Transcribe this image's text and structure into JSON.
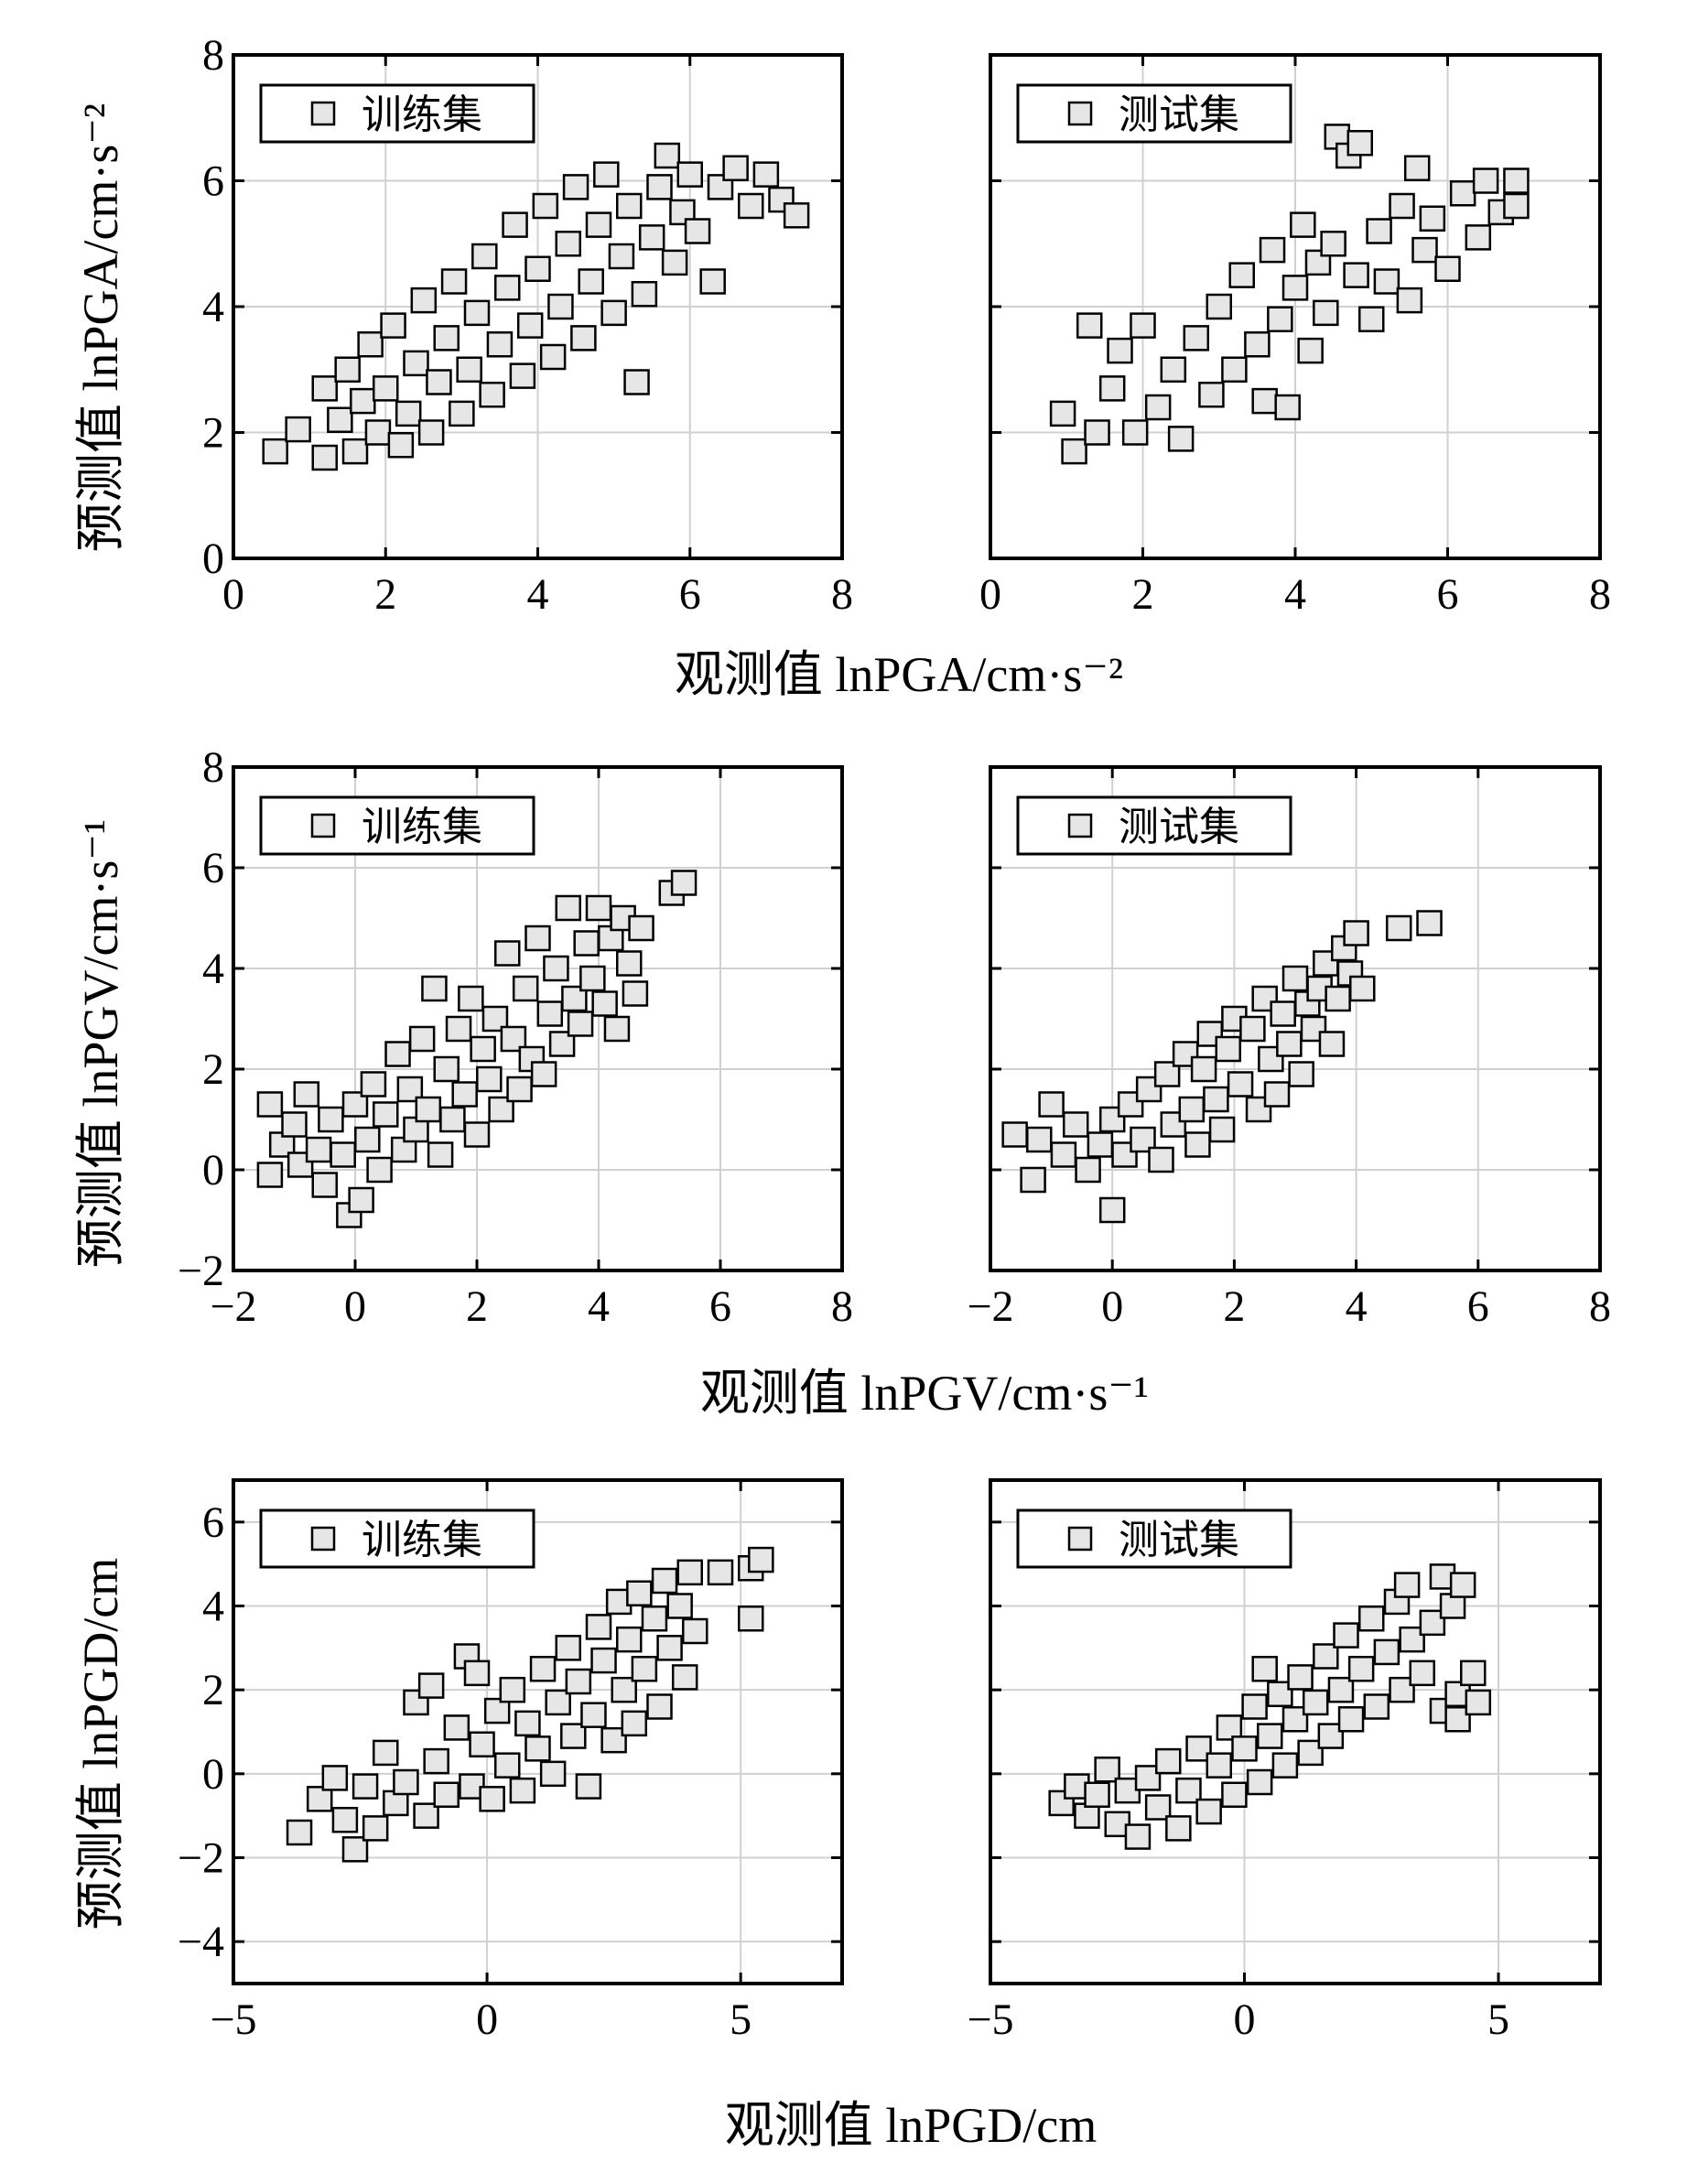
{
  "chart_data": [
    {
      "type": "scatter",
      "row": 0,
      "col": 0,
      "legend": "训练集",
      "xlabel": "观测值 lnPGA/cm·s⁻²",
      "ylabel": "预测值 lnPGA/cm·s⁻²",
      "xlim": [
        0,
        8
      ],
      "ylim": [
        0,
        8
      ],
      "xticks": [
        "0",
        "2",
        "4",
        "6",
        "8"
      ],
      "yticks": [
        "0",
        "2",
        "4",
        "6",
        "8"
      ],
      "points": [
        [
          0.55,
          1.7
        ],
        [
          0.85,
          2.05
        ],
        [
          1.2,
          1.6
        ],
        [
          1.2,
          2.7
        ],
        [
          1.4,
          2.2
        ],
        [
          1.5,
          3.0
        ],
        [
          1.6,
          1.7
        ],
        [
          1.7,
          2.5
        ],
        [
          1.8,
          3.4
        ],
        [
          1.9,
          2.0
        ],
        [
          2.0,
          2.7
        ],
        [
          2.1,
          3.7
        ],
        [
          2.2,
          1.8
        ],
        [
          2.3,
          2.3
        ],
        [
          2.4,
          3.1
        ],
        [
          2.5,
          4.1
        ],
        [
          2.6,
          2.0
        ],
        [
          2.7,
          2.8
        ],
        [
          2.8,
          3.5
        ],
        [
          2.9,
          4.4
        ],
        [
          3.0,
          2.3
        ],
        [
          3.1,
          3.0
        ],
        [
          3.2,
          3.9
        ],
        [
          3.3,
          4.8
        ],
        [
          3.4,
          2.6
        ],
        [
          3.5,
          3.4
        ],
        [
          3.6,
          4.3
        ],
        [
          3.7,
          5.3
        ],
        [
          3.8,
          2.9
        ],
        [
          3.9,
          3.7
        ],
        [
          4.0,
          4.6
        ],
        [
          4.1,
          5.6
        ],
        [
          4.2,
          3.2
        ],
        [
          4.3,
          4.0
        ],
        [
          4.4,
          5.0
        ],
        [
          4.5,
          5.9
        ],
        [
          4.6,
          3.5
        ],
        [
          4.7,
          4.4
        ],
        [
          4.8,
          5.3
        ],
        [
          4.9,
          6.1
        ],
        [
          5.0,
          3.9
        ],
        [
          5.1,
          4.8
        ],
        [
          5.2,
          5.6
        ],
        [
          5.3,
          2.8
        ],
        [
          5.4,
          4.2
        ],
        [
          5.5,
          5.1
        ],
        [
          5.6,
          5.9
        ],
        [
          5.7,
          6.4
        ],
        [
          5.8,
          4.7
        ],
        [
          5.9,
          5.5
        ],
        [
          6.0,
          6.1
        ],
        [
          6.1,
          5.2
        ],
        [
          6.3,
          4.4
        ],
        [
          6.4,
          5.9
        ],
        [
          6.6,
          6.2
        ],
        [
          6.8,
          5.6
        ],
        [
          7.0,
          6.1
        ],
        [
          7.2,
          5.7
        ],
        [
          7.4,
          5.45
        ]
      ],
      "marker_colour": "#e6e6e6",
      "edge_colour": "#000000"
    },
    {
      "type": "scatter",
      "row": 0,
      "col": 1,
      "legend": "测试集",
      "xlim": [
        0,
        8
      ],
      "ylim": [
        0,
        8
      ],
      "xticks": [
        "0",
        "2",
        "4",
        "6",
        "8"
      ],
      "yticks": [],
      "points": [
        [
          0.95,
          2.3
        ],
        [
          1.1,
          1.7
        ],
        [
          1.3,
          3.7
        ],
        [
          1.4,
          2.0
        ],
        [
          1.6,
          2.7
        ],
        [
          1.7,
          3.3
        ],
        [
          1.9,
          2.0
        ],
        [
          2.0,
          3.7
        ],
        [
          2.2,
          2.4
        ],
        [
          2.4,
          3.0
        ],
        [
          2.5,
          1.9
        ],
        [
          2.7,
          3.5
        ],
        [
          2.9,
          2.6
        ],
        [
          3.0,
          4.0
        ],
        [
          3.2,
          3.0
        ],
        [
          3.3,
          4.5
        ],
        [
          3.5,
          3.4
        ],
        [
          3.6,
          2.5
        ],
        [
          3.7,
          4.9
        ],
        [
          3.8,
          3.8
        ],
        [
          3.9,
          2.4
        ],
        [
          4.0,
          4.3
        ],
        [
          4.1,
          5.3
        ],
        [
          4.2,
          3.3
        ],
        [
          4.3,
          4.7
        ],
        [
          4.4,
          3.9
        ],
        [
          4.5,
          5.0
        ],
        [
          4.55,
          6.7
        ],
        [
          4.7,
          6.4
        ],
        [
          4.8,
          4.5
        ],
        [
          4.85,
          6.6
        ],
        [
          5.0,
          3.8
        ],
        [
          5.1,
          5.2
        ],
        [
          5.2,
          4.4
        ],
        [
          5.4,
          5.6
        ],
        [
          5.5,
          4.1
        ],
        [
          5.6,
          6.2
        ],
        [
          5.7,
          4.9
        ],
        [
          5.8,
          5.4
        ],
        [
          6.0,
          4.6
        ],
        [
          6.2,
          5.8
        ],
        [
          6.4,
          5.1
        ],
        [
          6.5,
          6.0
        ],
        [
          6.7,
          5.5
        ],
        [
          6.9,
          5.6
        ],
        [
          6.9,
          6.0
        ]
      ],
      "marker_colour": "#e6e6e6",
      "edge_colour": "#000000"
    },
    {
      "type": "scatter",
      "row": 1,
      "col": 0,
      "legend": "训练集",
      "xlabel": "观测值 lnPGV/cm·s⁻¹",
      "ylabel": "预测值 lnPGV/cm·s⁻¹",
      "xlim": [
        -2,
        8
      ],
      "ylim": [
        -2,
        8
      ],
      "xticks": [
        "−2",
        "0",
        "2",
        "4",
        "6",
        "8"
      ],
      "yticks": [
        "−2",
        "0",
        "2",
        "4",
        "6",
        "8"
      ],
      "points": [
        [
          -1.4,
          1.3
        ],
        [
          -1.4,
          -0.1
        ],
        [
          -1.2,
          0.5
        ],
        [
          -1.0,
          0.9
        ],
        [
          -0.9,
          0.1
        ],
        [
          -0.8,
          1.5
        ],
        [
          -0.6,
          0.4
        ],
        [
          -0.5,
          -0.3
        ],
        [
          -0.4,
          1.0
        ],
        [
          -0.2,
          0.3
        ],
        [
          -0.1,
          -0.9
        ],
        [
          0.0,
          1.3
        ],
        [
          0.1,
          -0.6
        ],
        [
          0.2,
          0.6
        ],
        [
          0.3,
          1.7
        ],
        [
          0.4,
          0.0
        ],
        [
          0.5,
          1.1
        ],
        [
          0.7,
          2.3
        ],
        [
          0.8,
          0.4
        ],
        [
          0.9,
          1.6
        ],
        [
          1.0,
          0.8
        ],
        [
          1.1,
          2.6
        ],
        [
          1.2,
          1.2
        ],
        [
          1.3,
          3.6
        ],
        [
          1.4,
          0.3
        ],
        [
          1.5,
          2.0
        ],
        [
          1.6,
          1.0
        ],
        [
          1.7,
          2.8
        ],
        [
          1.8,
          1.5
        ],
        [
          1.9,
          3.4
        ],
        [
          2.0,
          0.7
        ],
        [
          2.1,
          2.4
        ],
        [
          2.2,
          1.8
        ],
        [
          2.3,
          3.0
        ],
        [
          2.4,
          1.2
        ],
        [
          2.5,
          4.3
        ],
        [
          2.6,
          2.6
        ],
        [
          2.7,
          1.6
        ],
        [
          2.8,
          3.6
        ],
        [
          2.9,
          2.2
        ],
        [
          3.0,
          4.6
        ],
        [
          3.1,
          1.9
        ],
        [
          3.2,
          3.1
        ],
        [
          3.3,
          4.0
        ],
        [
          3.4,
          2.5
        ],
        [
          3.5,
          5.2
        ],
        [
          3.6,
          3.4
        ],
        [
          3.7,
          2.9
        ],
        [
          3.8,
          4.5
        ],
        [
          3.9,
          3.8
        ],
        [
          4.0,
          5.2
        ],
        [
          4.1,
          3.3
        ],
        [
          4.2,
          4.6
        ],
        [
          4.3,
          2.8
        ],
        [
          4.4,
          5.0
        ],
        [
          4.5,
          4.1
        ],
        [
          4.6,
          3.5
        ],
        [
          4.7,
          4.8
        ],
        [
          5.2,
          5.5
        ],
        [
          5.4,
          5.7
        ]
      ],
      "marker_colour": "#e6e6e6",
      "edge_colour": "#000000"
    },
    {
      "type": "scatter",
      "row": 1,
      "col": 1,
      "legend": "测试集",
      "xlim": [
        -2,
        8
      ],
      "ylim": [
        -2,
        8
      ],
      "xticks": [
        "−2",
        "0",
        "2",
        "4",
        "6",
        "8"
      ],
      "yticks": [],
      "points": [
        [
          -1.6,
          0.7
        ],
        [
          -1.3,
          -0.2
        ],
        [
          -1.2,
          0.6
        ],
        [
          -1.0,
          1.3
        ],
        [
          -0.8,
          0.3
        ],
        [
          -0.6,
          0.9
        ],
        [
          -0.4,
          0.0
        ],
        [
          -0.2,
          0.5
        ],
        [
          0.0,
          -0.8
        ],
        [
          0.0,
          1.0
        ],
        [
          0.2,
          0.3
        ],
        [
          0.3,
          1.3
        ],
        [
          0.5,
          0.6
        ],
        [
          0.6,
          1.6
        ],
        [
          0.8,
          0.2
        ],
        [
          0.9,
          1.9
        ],
        [
          1.0,
          0.9
        ],
        [
          1.2,
          2.3
        ],
        [
          1.3,
          1.2
        ],
        [
          1.4,
          0.5
        ],
        [
          1.5,
          2.0
        ],
        [
          1.6,
          2.7
        ],
        [
          1.7,
          1.4
        ],
        [
          1.8,
          0.8
        ],
        [
          1.9,
          2.4
        ],
        [
          2.0,
          3.0
        ],
        [
          2.1,
          1.7
        ],
        [
          2.3,
          2.8
        ],
        [
          2.4,
          1.2
        ],
        [
          2.5,
          3.4
        ],
        [
          2.6,
          2.2
        ],
        [
          2.7,
          1.5
        ],
        [
          2.8,
          3.1
        ],
        [
          2.9,
          2.5
        ],
        [
          3.0,
          3.8
        ],
        [
          3.1,
          1.9
        ],
        [
          3.2,
          3.3
        ],
        [
          3.3,
          2.8
        ],
        [
          3.4,
          3.6
        ],
        [
          3.5,
          4.1
        ],
        [
          3.6,
          2.5
        ],
        [
          3.7,
          3.4
        ],
        [
          3.8,
          4.4
        ],
        [
          3.9,
          3.9
        ],
        [
          4.0,
          4.7
        ],
        [
          4.1,
          3.6
        ],
        [
          4.7,
          4.8
        ],
        [
          5.2,
          4.9
        ]
      ],
      "marker_colour": "#e6e6e6",
      "edge_colour": "#000000"
    },
    {
      "type": "scatter",
      "row": 2,
      "col": 0,
      "legend": "训练集",
      "xlabel": "观测值 lnPGD/cm",
      "ylabel": "预测值 lnPGD/cm",
      "xlim": [
        -5,
        7
      ],
      "ylim": [
        -5,
        7
      ],
      "xticks": [
        "−5",
        "0",
        "5"
      ],
      "yticks": [
        "−4",
        "−2",
        "0",
        "2",
        "4",
        "6"
      ],
      "points": [
        [
          -3.7,
          -1.4
        ],
        [
          -3.3,
          -0.6
        ],
        [
          -3.0,
          -0.1
        ],
        [
          -2.8,
          -1.1
        ],
        [
          -2.6,
          -1.8
        ],
        [
          -2.4,
          -0.3
        ],
        [
          -2.2,
          -1.3
        ],
        [
          -2.0,
          0.5
        ],
        [
          -1.8,
          -0.7
        ],
        [
          -1.6,
          -0.2
        ],
        [
          -1.4,
          1.7
        ],
        [
          -1.2,
          -1.0
        ],
        [
          -1.1,
          2.1
        ],
        [
          -1.0,
          0.3
        ],
        [
          -0.8,
          -0.5
        ],
        [
          -0.6,
          1.1
        ],
        [
          -0.4,
          2.8
        ],
        [
          -0.3,
          -0.3
        ],
        [
          -0.2,
          2.4
        ],
        [
          -0.1,
          0.7
        ],
        [
          0.1,
          -0.6
        ],
        [
          0.2,
          1.5
        ],
        [
          0.4,
          0.2
        ],
        [
          0.5,
          2.0
        ],
        [
          0.7,
          -0.4
        ],
        [
          0.8,
          1.2
        ],
        [
          1.0,
          0.6
        ],
        [
          1.1,
          2.5
        ],
        [
          1.3,
          0.0
        ],
        [
          1.4,
          1.7
        ],
        [
          1.6,
          3.0
        ],
        [
          1.7,
          0.9
        ],
        [
          1.8,
          2.2
        ],
        [
          2.0,
          -0.3
        ],
        [
          2.1,
          1.4
        ],
        [
          2.2,
          3.5
        ],
        [
          2.3,
          2.7
        ],
        [
          2.5,
          0.8
        ],
        [
          2.6,
          4.1
        ],
        [
          2.7,
          2.0
        ],
        [
          2.8,
          3.2
        ],
        [
          2.9,
          1.2
        ],
        [
          3.0,
          4.3
        ],
        [
          3.1,
          2.5
        ],
        [
          3.3,
          3.7
        ],
        [
          3.4,
          1.6
        ],
        [
          3.5,
          4.6
        ],
        [
          3.6,
          3.0
        ],
        [
          3.8,
          4.0
        ],
        [
          3.9,
          2.3
        ],
        [
          4.0,
          4.8
        ],
        [
          4.1,
          3.4
        ],
        [
          4.6,
          4.8
        ],
        [
          5.2,
          3.7
        ],
        [
          5.2,
          4.9
        ],
        [
          5.4,
          5.1
        ]
      ],
      "marker_colour": "#e6e6e6",
      "edge_colour": "#000000"
    },
    {
      "type": "scatter",
      "row": 2,
      "col": 1,
      "legend": "测试集",
      "xlim": [
        -5,
        7
      ],
      "ylim": [
        -5,
        7
      ],
      "xticks": [
        "−5",
        "0",
        "5"
      ],
      "yticks": [],
      "points": [
        [
          -3.6,
          -0.7
        ],
        [
          -3.3,
          -0.3
        ],
        [
          -3.1,
          -1.0
        ],
        [
          -2.9,
          -0.5
        ],
        [
          -2.7,
          0.1
        ],
        [
          -2.5,
          -1.2
        ],
        [
          -2.3,
          -0.4
        ],
        [
          -2.1,
          -1.5
        ],
        [
          -1.9,
          -0.1
        ],
        [
          -1.7,
          -0.8
        ],
        [
          -1.5,
          0.3
        ],
        [
          -1.3,
          -1.3
        ],
        [
          -1.1,
          -0.4
        ],
        [
          -0.9,
          0.6
        ],
        [
          -0.7,
          -0.9
        ],
        [
          -0.5,
          0.2
        ],
        [
          -0.3,
          1.1
        ],
        [
          -0.2,
          -0.5
        ],
        [
          0.0,
          0.6
        ],
        [
          0.2,
          1.6
        ],
        [
          0.3,
          -0.2
        ],
        [
          0.4,
          2.5
        ],
        [
          0.5,
          0.9
        ],
        [
          0.7,
          1.9
        ],
        [
          0.8,
          0.2
        ],
        [
          1.0,
          1.3
        ],
        [
          1.1,
          2.3
        ],
        [
          1.3,
          0.5
        ],
        [
          1.4,
          1.7
        ],
        [
          1.6,
          2.8
        ],
        [
          1.7,
          0.9
        ],
        [
          1.9,
          2.0
        ],
        [
          2.0,
          3.3
        ],
        [
          2.1,
          1.3
        ],
        [
          2.3,
          2.5
        ],
        [
          2.5,
          3.7
        ],
        [
          2.6,
          1.6
        ],
        [
          2.8,
          2.9
        ],
        [
          3.0,
          4.1
        ],
        [
          3.1,
          2.0
        ],
        [
          3.2,
          4.5
        ],
        [
          3.3,
          3.2
        ],
        [
          3.5,
          2.4
        ],
        [
          3.7,
          3.6
        ],
        [
          3.9,
          1.5
        ],
        [
          3.9,
          4.7
        ],
        [
          4.1,
          4.0
        ],
        [
          4.2,
          1.3
        ],
        [
          4.2,
          1.9
        ],
        [
          4.3,
          4.5
        ],
        [
          4.5,
          2.4
        ],
        [
          4.6,
          1.7
        ]
      ],
      "marker_colour": "#e6e6e6",
      "edge_colour": "#000000"
    }
  ]
}
